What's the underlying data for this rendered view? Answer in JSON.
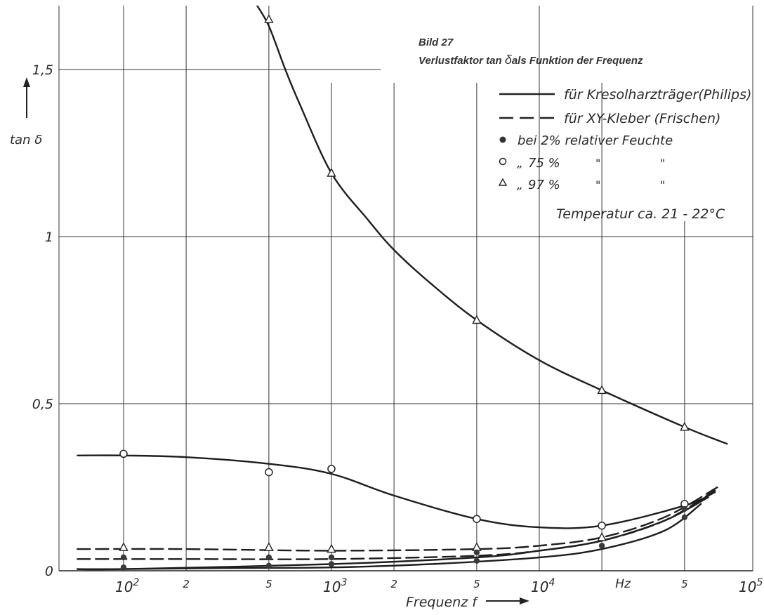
{
  "chart_data": {
    "type": "line",
    "title": "Bild 27",
    "subtitle_parts": [
      "Verlustfaktor tan ",
      "δ",
      "als Funktion der Frequenz"
    ],
    "xlabel": "Frequenz f",
    "ylabel": "tan δ",
    "x_scale": "log",
    "xlim": [
      50,
      100000
    ],
    "ylim": [
      0,
      1.5
    ],
    "grid": true,
    "x_tick_labels": [
      {
        "x": 100,
        "base": "10",
        "exp": "2"
      },
      {
        "x": 200,
        "text": "2"
      },
      {
        "x": 500,
        "text": "5"
      },
      {
        "x": 1000,
        "base": "10",
        "exp": "3"
      },
      {
        "x": 2000,
        "text": "2"
      },
      {
        "x": 5000,
        "text": "5"
      },
      {
        "x": 10000,
        "base": "10",
        "exp": "4"
      },
      {
        "x": 20000,
        "text": "Hz"
      },
      {
        "x": 50000,
        "text": "5"
      },
      {
        "x": 100000,
        "base": "10",
        "exp": "5"
      }
    ],
    "y_ticks": [
      {
        "y": 0,
        "label": "0"
      },
      {
        "y": 0.5,
        "label": "0,5"
      },
      {
        "y": 1,
        "label": "1"
      },
      {
        "y": 1.5,
        "label": "1,5"
      }
    ],
    "legend": [
      {
        "style": "solid",
        "label": "für Kresolharzträger(Philips)"
      },
      {
        "style": "dashed",
        "label": "für XY-Kleber (Frischen)"
      },
      {
        "marker": "dot",
        "label": "bei 2% relativer Feuchte"
      },
      {
        "marker": "circle",
        "prefix": "„",
        "label": "75 %",
        "ditto1": "\"",
        "ditto2": "\""
      },
      {
        "marker": "triangle",
        "prefix": "„",
        "label": "97 %",
        "ditto1": "\"",
        "ditto2": "\""
      }
    ],
    "annotation": "Temperatur ca. 21 - 22°C",
    "curves": [
      {
        "style": "solid",
        "points": [
          [
            430,
            1.7
          ],
          [
            500,
            1.63
          ],
          [
            600,
            1.5
          ],
          [
            700,
            1.4
          ],
          [
            1000,
            1.19
          ],
          [
            1500,
            1.05
          ],
          [
            2000,
            0.96
          ],
          [
            3000,
            0.86
          ],
          [
            5000,
            0.75
          ],
          [
            10000,
            0.63
          ],
          [
            20000,
            0.54
          ],
          [
            50000,
            0.43
          ],
          [
            80000,
            0.38
          ]
        ]
      },
      {
        "style": "solid",
        "points": [
          [
            60,
            0.345
          ],
          [
            100,
            0.345
          ],
          [
            200,
            0.34
          ],
          [
            500,
            0.32
          ],
          [
            1000,
            0.29
          ],
          [
            2000,
            0.225
          ],
          [
            5000,
            0.155
          ],
          [
            10000,
            0.13
          ],
          [
            20000,
            0.135
          ],
          [
            50000,
            0.195
          ],
          [
            70000,
            0.235
          ]
        ]
      },
      {
        "style": "solid",
        "points": [
          [
            60,
            0.005
          ],
          [
            100,
            0.005
          ],
          [
            300,
            0.008
          ],
          [
            1000,
            0.01
          ],
          [
            3000,
            0.02
          ],
          [
            10000,
            0.04
          ],
          [
            20000,
            0.065
          ],
          [
            40000,
            0.12
          ],
          [
            60000,
            0.2
          ]
        ]
      },
      {
        "style": "solid",
        "points": [
          [
            60,
            0.005
          ],
          [
            100,
            0.005
          ],
          [
            1000,
            0.02
          ],
          [
            5000,
            0.04
          ],
          [
            10000,
            0.06
          ],
          [
            20000,
            0.09
          ],
          [
            40000,
            0.15
          ],
          [
            65000,
            0.22
          ]
        ]
      },
      {
        "style": "dashed",
        "points": [
          [
            60,
            0.035
          ],
          [
            200,
            0.035
          ],
          [
            1000,
            0.035
          ],
          [
            5000,
            0.045
          ],
          [
            10000,
            0.06
          ],
          [
            20000,
            0.09
          ],
          [
            40000,
            0.15
          ],
          [
            70000,
            0.24
          ]
        ]
      },
      {
        "style": "dashed",
        "points": [
          [
            60,
            0.065
          ],
          [
            200,
            0.065
          ],
          [
            1000,
            0.06
          ],
          [
            5000,
            0.065
          ],
          [
            10000,
            0.075
          ],
          [
            20000,
            0.1
          ],
          [
            40000,
            0.16
          ],
          [
            72000,
            0.25
          ]
        ]
      }
    ],
    "markers": {
      "triangle": [
        [
          500,
          1.65
        ],
        [
          1000,
          1.19
        ],
        [
          5000,
          0.75
        ],
        [
          20000,
          0.54
        ],
        [
          50000,
          0.43
        ],
        [
          100,
          0.07
        ],
        [
          500,
          0.07
        ],
        [
          1000,
          0.065
        ],
        [
          5000,
          0.07
        ],
        [
          20000,
          0.1
        ]
      ],
      "circle": [
        [
          100,
          0.35
        ],
        [
          500,
          0.295
        ],
        [
          1000,
          0.305
        ],
        [
          5000,
          0.155
        ],
        [
          20000,
          0.135
        ],
        [
          50000,
          0.2
        ]
      ],
      "dot": [
        [
          100,
          0.04
        ],
        [
          100,
          0.01
        ],
        [
          500,
          0.04
        ],
        [
          500,
          0.015
        ],
        [
          1000,
          0.04
        ],
        [
          1000,
          0.02
        ],
        [
          5000,
          0.055
        ],
        [
          5000,
          0.03
        ],
        [
          20000,
          0.075
        ],
        [
          50000,
          0.16
        ],
        [
          50000,
          0.185
        ]
      ]
    }
  }
}
